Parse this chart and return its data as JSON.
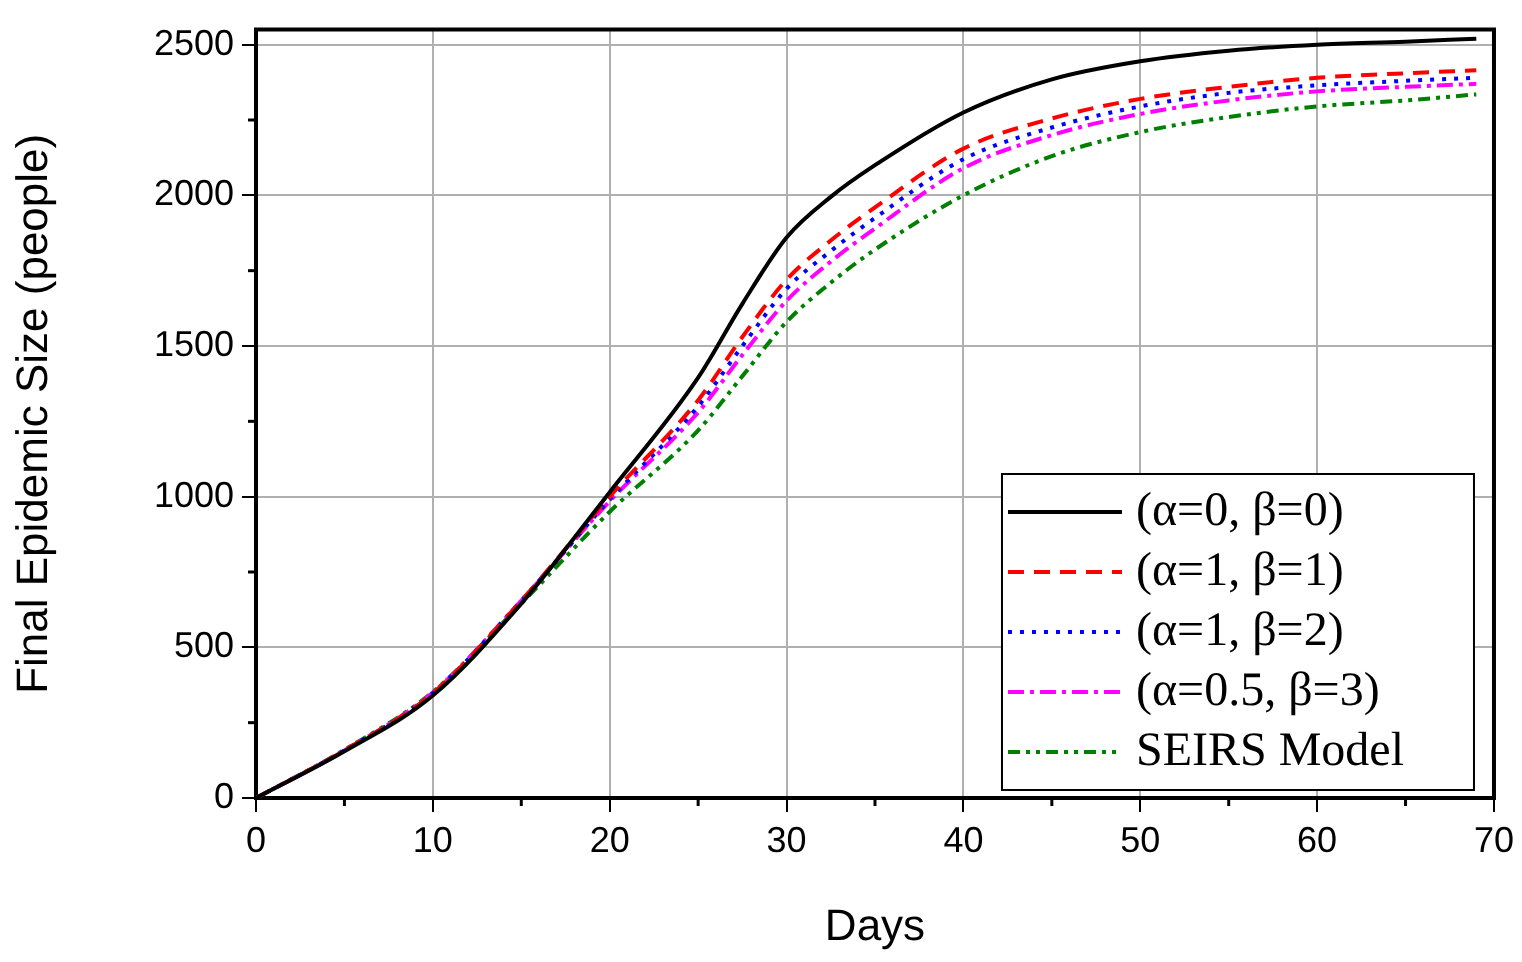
{
  "chart_data": {
    "type": "line",
    "xlabel": "Days",
    "ylabel": "Final Epidemic Size (people)",
    "x": [
      0,
      5,
      10,
      15,
      20,
      25,
      27.5,
      30,
      32.5,
      35,
      40,
      45,
      50,
      55,
      60,
      65,
      69
    ],
    "xlim": [
      0,
      70
    ],
    "xticks": [
      0,
      10,
      20,
      30,
      40,
      50,
      60,
      70
    ],
    "ylim": [
      0,
      2550
    ],
    "yticks": [
      0,
      500,
      1000,
      1500,
      2000,
      2500
    ],
    "grid": true,
    "legend": "bottom right",
    "marker": "none",
    "series": [
      {
        "name": "(α=0, β=0)",
        "color": "#000000",
        "line_style": "solid",
        "values": [
          0,
          155,
          340,
          645,
          1015,
          1395,
          1640,
          1860,
          1995,
          2100,
          2275,
          2385,
          2445,
          2480,
          2500,
          2510,
          2520
        ]
      },
      {
        "name": "(α=1, β=1)",
        "color": "#ff0000",
        "line_style": "dashed",
        "values": [
          0,
          158,
          348,
          655,
          1000,
          1320,
          1530,
          1720,
          1850,
          1960,
          2155,
          2255,
          2320,
          2360,
          2390,
          2405,
          2415
        ]
      },
      {
        "name": "(α=1, β=2)",
        "color": "#0000ff",
        "line_style": "dotted",
        "values": [
          0,
          158,
          348,
          655,
          990,
          1300,
          1500,
          1690,
          1815,
          1925,
          2120,
          2225,
          2295,
          2340,
          2365,
          2380,
          2390
        ]
      },
      {
        "name": "(α=0.5, β=3)",
        "color": "#ff00ff",
        "line_style": "dashdot",
        "values": [
          0,
          158,
          350,
          655,
          985,
          1280,
          1470,
          1650,
          1780,
          1890,
          2090,
          2200,
          2270,
          2315,
          2345,
          2360,
          2370
        ]
      },
      {
        "name": "SEIRS Model",
        "color": "#008000",
        "line_style": "dashdotdot",
        "values": [
          0,
          160,
          352,
          645,
          950,
          1220,
          1400,
          1580,
          1710,
          1820,
          2000,
          2130,
          2210,
          2260,
          2295,
          2315,
          2335
        ]
      }
    ]
  }
}
